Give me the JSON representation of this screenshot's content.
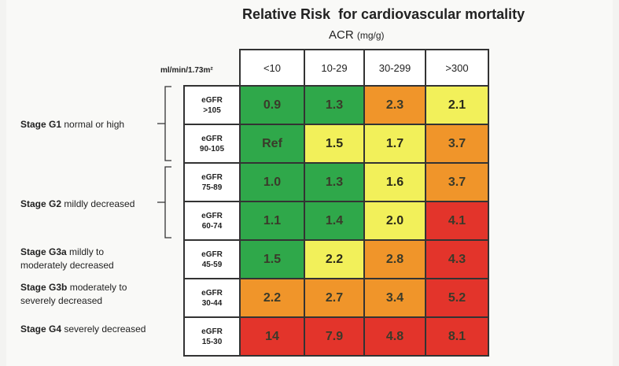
{
  "title": "Relative Risk  for cardiovascular mortality",
  "subtitle": "ACR",
  "subtitle_unit": "(mg/g)",
  "row_unit_label": "ml/min/1.73m²",
  "colors": {
    "green": "#2fa84a",
    "yellow": "#f2f05a",
    "orange": "#f0952a",
    "red": "#e3342b"
  },
  "chart_data": {
    "type": "heatmap",
    "title": "Relative Risk  for cardiovascular mortality",
    "xlabel": "ACR (mg/g)",
    "ylabel": "ml/min/1.73m²",
    "columns": [
      "<10",
      "10-29",
      "30-299",
      ">300"
    ],
    "rows": [
      {
        "label_line1": "eGFR",
        "label_line2": ">105",
        "values": [
          "0.9",
          "1.3",
          "2.3",
          "2.1"
        ],
        "colors": [
          "green",
          "green",
          "orange",
          "yellow"
        ]
      },
      {
        "label_line1": "eGFR",
        "label_line2": "90-105",
        "values": [
          "Ref",
          "1.5",
          "1.7",
          "3.7"
        ],
        "colors": [
          "green",
          "yellow",
          "yellow",
          "orange"
        ]
      },
      {
        "label_line1": "eGFR",
        "label_line2": "75-89",
        "values": [
          "1.0",
          "1.3",
          "1.6",
          "3.7"
        ],
        "colors": [
          "green",
          "green",
          "yellow",
          "orange"
        ]
      },
      {
        "label_line1": "eGFR",
        "label_line2": "60-74",
        "values": [
          "1.1",
          "1.4",
          "2.0",
          "4.1"
        ],
        "colors": [
          "green",
          "green",
          "yellow",
          "red"
        ]
      },
      {
        "label_line1": "eGFR",
        "label_line2": "45-59",
        "values": [
          "1.5",
          "2.2",
          "2.8",
          "4.3"
        ],
        "colors": [
          "green",
          "yellow",
          "orange",
          "red"
        ]
      },
      {
        "label_line1": "eGFR",
        "label_line2": "30-44",
        "values": [
          "2.2",
          "2.7",
          "3.4",
          "5.2"
        ],
        "colors": [
          "orange",
          "orange",
          "orange",
          "red"
        ]
      },
      {
        "label_line1": "eGFR",
        "label_line2": "15-30",
        "values": [
          "14",
          "7.9",
          "4.8",
          "8.1"
        ],
        "colors": [
          "red",
          "red",
          "red",
          "red"
        ]
      }
    ]
  },
  "stages": {
    "g1": {
      "name": "Stage  G1",
      "desc": " normal  or high"
    },
    "g2": {
      "name": "Stage  G2",
      "desc": "  mildly decreased"
    },
    "g3a": {
      "name": "Stage  G3a",
      "desc": " mildly to",
      "desc2": "moderately decreased"
    },
    "g3b": {
      "name": "Stage  G3b",
      "desc": " moderately to",
      "desc2": "severely decreased"
    },
    "g4": {
      "name": "Stage  G4",
      "desc": " severely decreased"
    }
  }
}
